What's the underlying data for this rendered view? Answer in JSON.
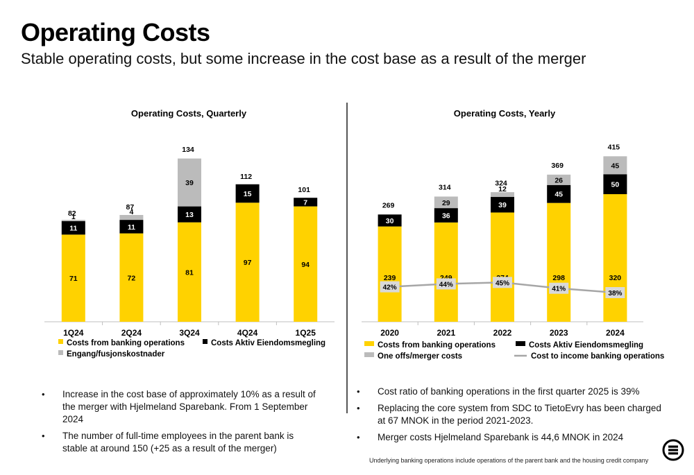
{
  "header": {
    "title": "Operating Costs",
    "subtitle": "Stable operating costs, but some increase in the cost base as a result of the merger"
  },
  "colors": {
    "banking": "#FFD200",
    "eiendom": "#000000",
    "other": "#BBBBBB",
    "ratio_line": "#A6A6A6"
  },
  "chart_data": [
    {
      "type": "bar",
      "stacked": true,
      "title": "Operating Costs, Quarterly",
      "categories": [
        "1Q24",
        "2Q24",
        "3Q24",
        "4Q24",
        "1Q25"
      ],
      "series": [
        {
          "name": "Costs from banking operations",
          "values": [
            71,
            72,
            81,
            97,
            94
          ]
        },
        {
          "name": "Costs Aktiv Eiendomsmegling",
          "values": [
            11,
            11,
            13,
            15,
            7
          ]
        },
        {
          "name": "Engang/fusjonskostnader",
          "values": [
            1,
            4,
            39,
            0,
            0
          ]
        }
      ],
      "totals": [
        82,
        87,
        134,
        112,
        101
      ],
      "top_labels": [
        "1",
        "4",
        "39",
        "",
        ""
      ],
      "legend_position": "bottom",
      "grid": false
    },
    {
      "type": "bar",
      "stacked": true,
      "title": "Operating Costs, Yearly",
      "categories": [
        "2020",
        "2021",
        "2022",
        "2023",
        "2024"
      ],
      "series": [
        {
          "name": "Costs from banking operations",
          "values": [
            239,
            249,
            274,
            298,
            320
          ]
        },
        {
          "name": "Costs Aktiv Eiendomsmegling",
          "values": [
            30,
            36,
            39,
            45,
            50
          ]
        },
        {
          "name": "One offs/merger costs",
          "values": [
            0,
            29,
            12,
            26,
            45
          ]
        }
      ],
      "totals": [
        269,
        314,
        324,
        369,
        415
      ],
      "line": {
        "name": "Cost to income banking operations",
        "values": [
          42,
          44,
          45,
          41,
          38
        ],
        "labels": [
          "42%",
          "44%",
          "45%",
          "41%",
          "38%"
        ]
      },
      "legend_position": "bottom",
      "grid": false
    }
  ],
  "bullets_left": [
    "Increase in the cost base of approximately 10% as a result of the merger with Hjelmeland Sparebank. From 1 September 2024",
    "The number of full-time employees in the parent bank is stable at around 150 (+25 as a result of the merger)"
  ],
  "bullets_right": [
    "Cost ratio of banking operations in the first quarter 2025 is 39%",
    "Replacing the core system from SDC to TietoEvry has been charged at 67 MNOK in the period 2021-2023.",
    "Merger costs Hjelmeland Sparebank is 44,6 MNOK in 2024"
  ],
  "footnote": "Underlying banking operations include operations of the parent bank and the housing credit company",
  "logo_icon": "bank-logo-icon"
}
